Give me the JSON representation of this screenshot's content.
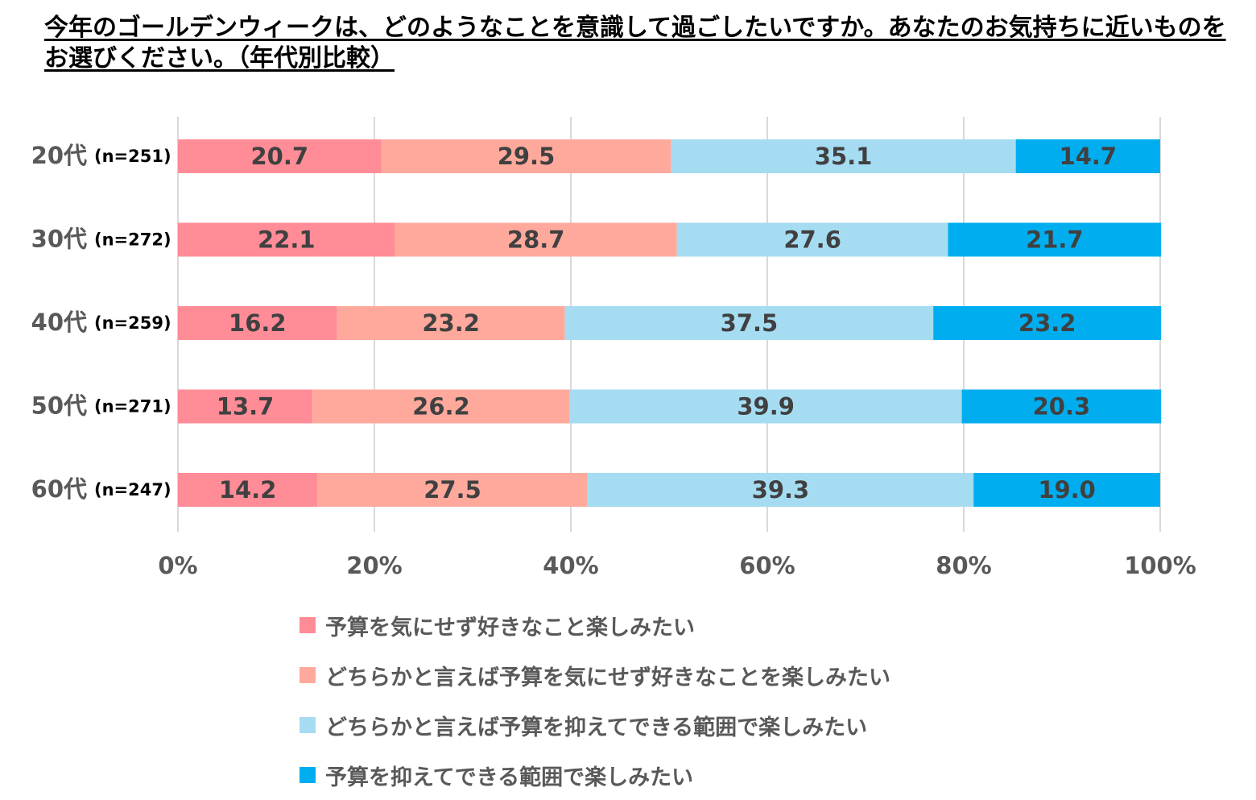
{
  "title": "今年のゴールデンウィークは、どのようなことを意識して過ごしたいですか。あなたのお気持ちに近いものをお選びください。（年代別比較）",
  "chart_data": {
    "type": "bar",
    "orientation": "horizontal",
    "stacked": true,
    "title": "今年のゴールデンウィークは、どのようなことを意識して過ごしたいですか。あなたのお気持ちに近いものをお選びください。（年代別比較）",
    "categories": [
      "20代",
      "30代",
      "40代",
      "50代",
      "60代"
    ],
    "sample_sizes": [
      "(n=251)",
      "(n=272)",
      "(n=259)",
      "(n=271)",
      "(n=247)"
    ],
    "series": [
      {
        "name": "予算を気にせず好きなこと楽しみたい",
        "color": "#ff8c96",
        "values": [
          20.7,
          22.1,
          16.2,
          13.7,
          14.2
        ]
      },
      {
        "name": "どちらかと言えば予算を気にせず好きなことを楽しみたい",
        "color": "#ffa99d",
        "values": [
          29.5,
          28.7,
          23.2,
          26.2,
          27.5
        ]
      },
      {
        "name": "どちらかと言えば予算を抑えてできる範囲で楽しみたい",
        "color": "#a5dcf2",
        "values": [
          35.1,
          27.6,
          37.5,
          39.9,
          39.3
        ]
      },
      {
        "name": "予算を抑えてできる範囲で楽しみたい",
        "color": "#00aeef",
        "values": [
          14.7,
          21.7,
          23.2,
          20.3,
          19.0
        ]
      }
    ],
    "xlim": [
      0,
      100
    ],
    "xticks": [
      "0%",
      "20%",
      "40%",
      "60%",
      "80%",
      "100%"
    ],
    "grid": true,
    "legend_position": "bottom",
    "xlabel": "",
    "ylabel": ""
  }
}
